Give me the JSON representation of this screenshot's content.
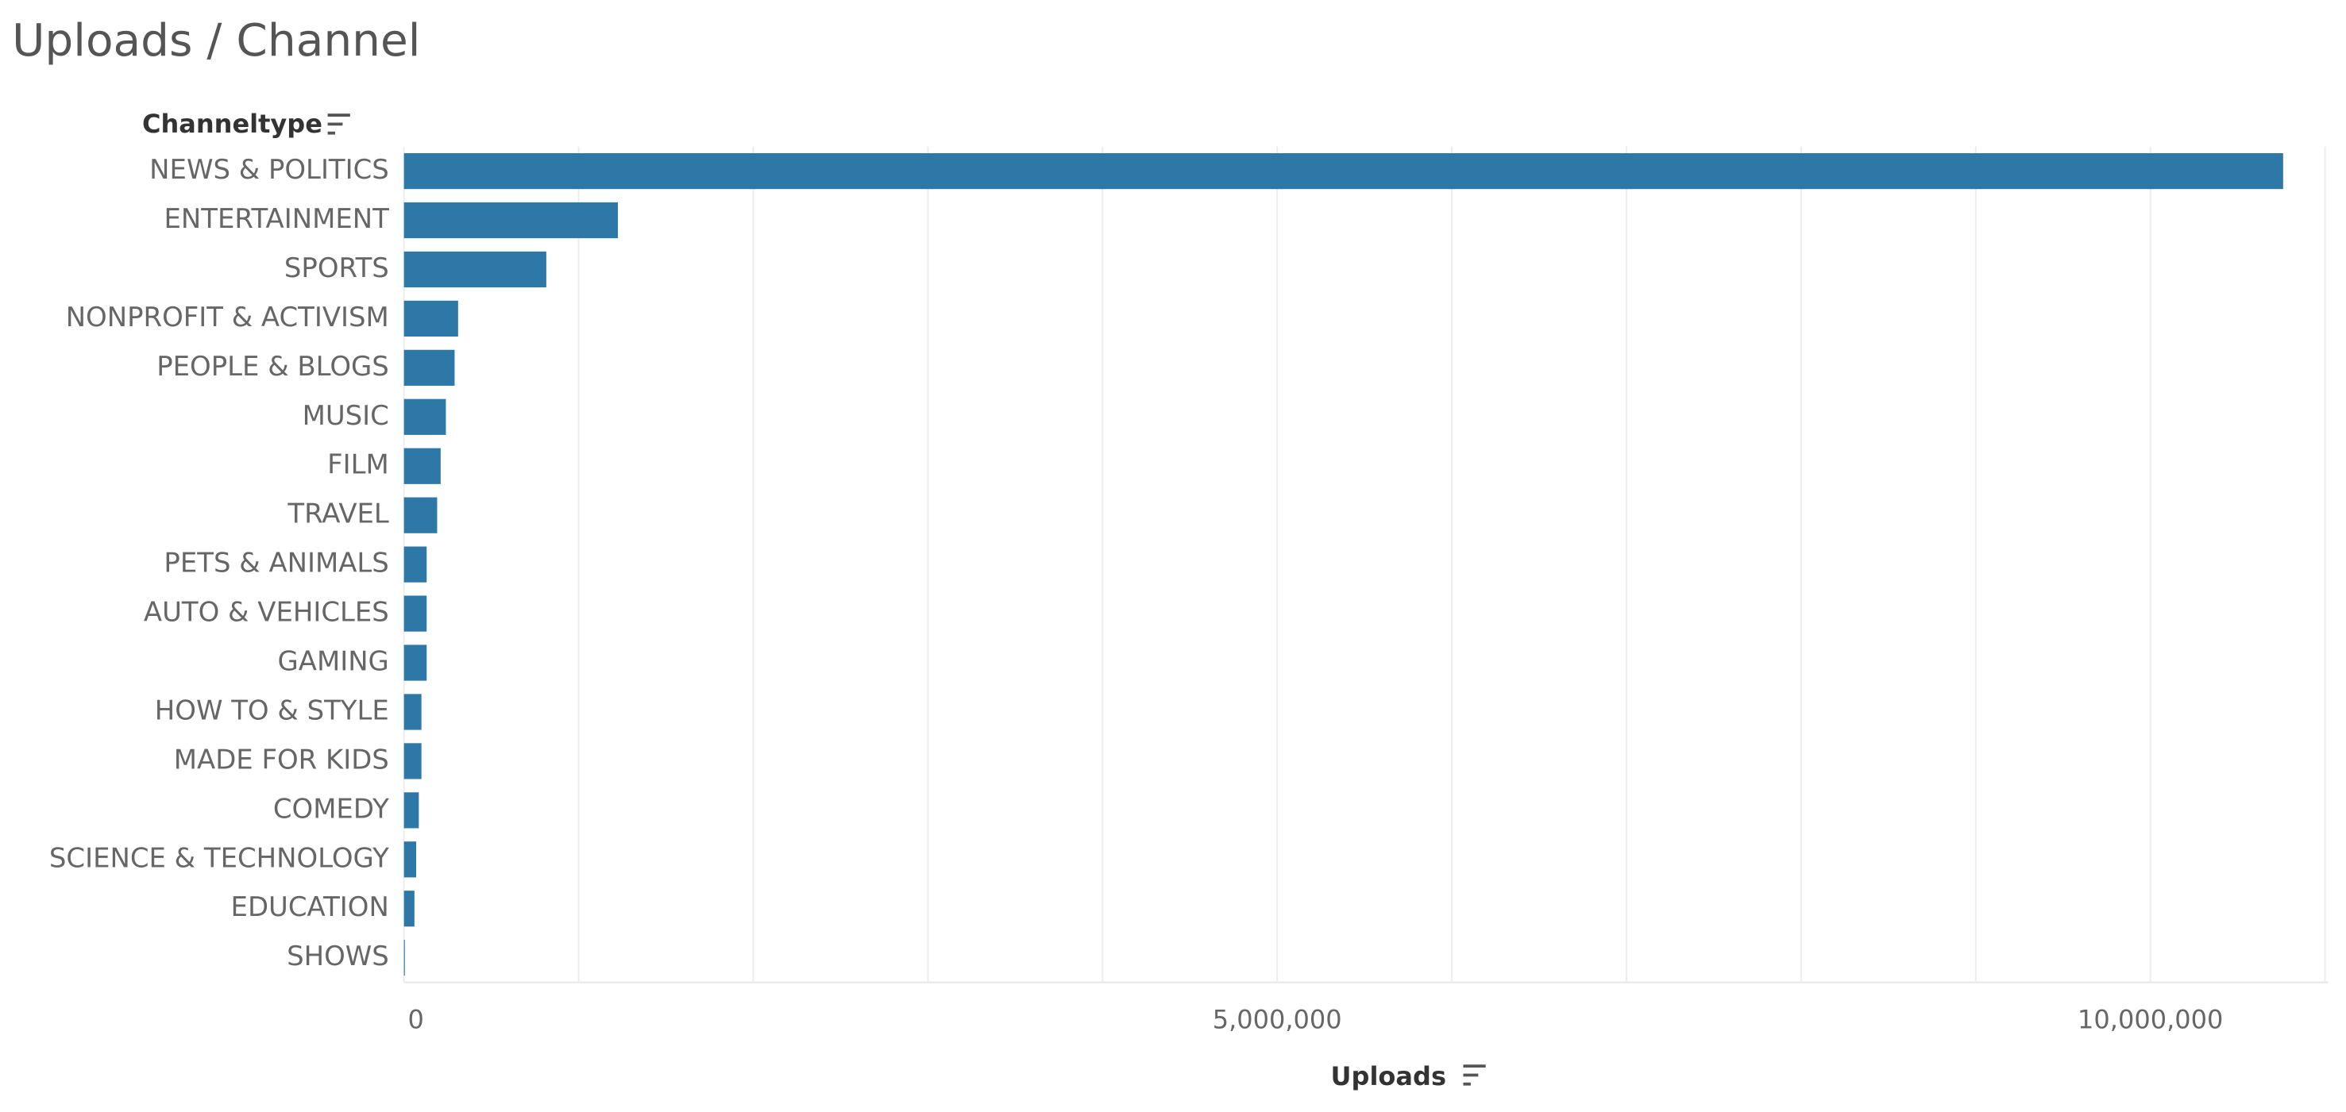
{
  "chart_data": {
    "type": "bar",
    "orientation": "horizontal",
    "title": "Uploads / Channel",
    "y_label": "Channeltype",
    "x_label": "Uploads",
    "categories": [
      "NEWS & POLITICS",
      "ENTERTAINMENT",
      "SPORTS",
      "NONPROFIT & ACTIVISM",
      "PEOPLE & BLOGS",
      "MUSIC",
      "FILM",
      "TRAVEL",
      "PETS & ANIMALS",
      "AUTO & VEHICLES",
      "GAMING",
      "HOW TO & STYLE",
      "MADE FOR KIDS",
      "COMEDY",
      "SCIENCE & TECHNOLOGY",
      "EDUCATION",
      "SHOWS"
    ],
    "values": [
      10760000,
      1225000,
      815000,
      310000,
      290000,
      240000,
      210000,
      190000,
      130000,
      130000,
      130000,
      100000,
      100000,
      85000,
      70000,
      60000,
      5000
    ],
    "color": "#2e78a8",
    "xlim": [
      0,
      11000000
    ],
    "xticks": [
      0,
      {
        "value": 5000000,
        "label": "5,000,000"
      },
      {
        "value": 10000000,
        "label": "10,000,000"
      }
    ],
    "xgrid": [
      0,
      1000000,
      2000000,
      3000000,
      4000000,
      5000000,
      6000000,
      7000000,
      8000000,
      9000000,
      10000000,
      11000000
    ],
    "grid": true
  }
}
